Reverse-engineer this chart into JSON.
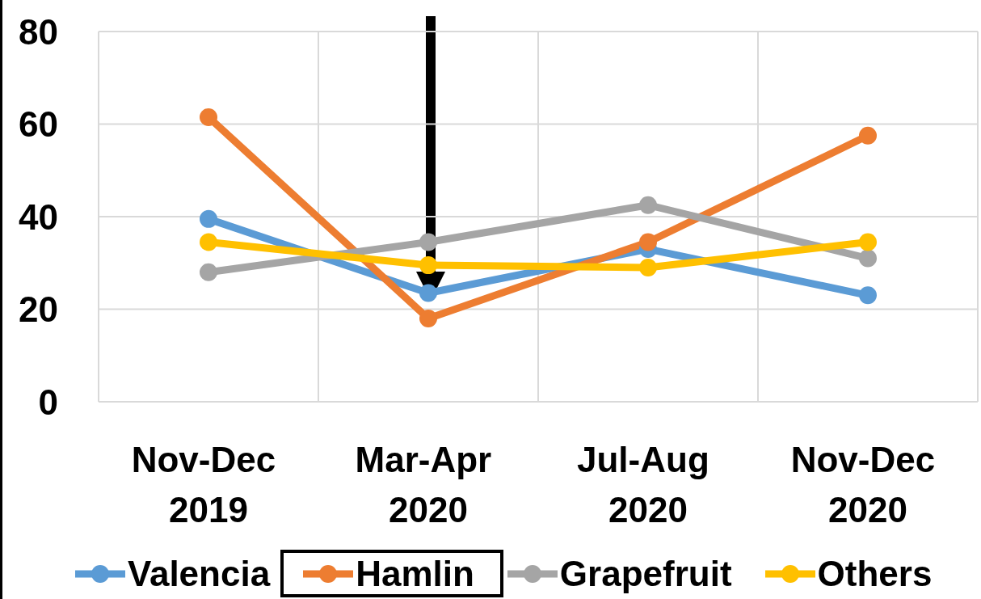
{
  "chart_data": {
    "type": "line",
    "categories": [
      "Nov-Dec 2019",
      "Mar-Apr 2020",
      "Jul-Aug 2020",
      "Nov-Dec 2020"
    ],
    "series": [
      {
        "name": "Valencia",
        "color": "#5b9bd5",
        "values": [
          39.5,
          23.5,
          33,
          23
        ]
      },
      {
        "name": "Hamlin",
        "color": "#ed7d31",
        "values": [
          61.5,
          18,
          34.5,
          57.5
        ]
      },
      {
        "name": "Grapefruit",
        "color": "#a5a5a5",
        "values": [
          28,
          34.5,
          42.5,
          31
        ]
      },
      {
        "name": "Others",
        "color": "#ffc000",
        "values": [
          34.5,
          29.5,
          29,
          34.5
        ]
      }
    ],
    "ylim": [
      0,
      80
    ],
    "yticks": [
      0,
      20,
      40,
      60,
      80
    ],
    "grid": true,
    "legend": "bottom",
    "marker": "circle",
    "line_style": "solid"
  }
}
